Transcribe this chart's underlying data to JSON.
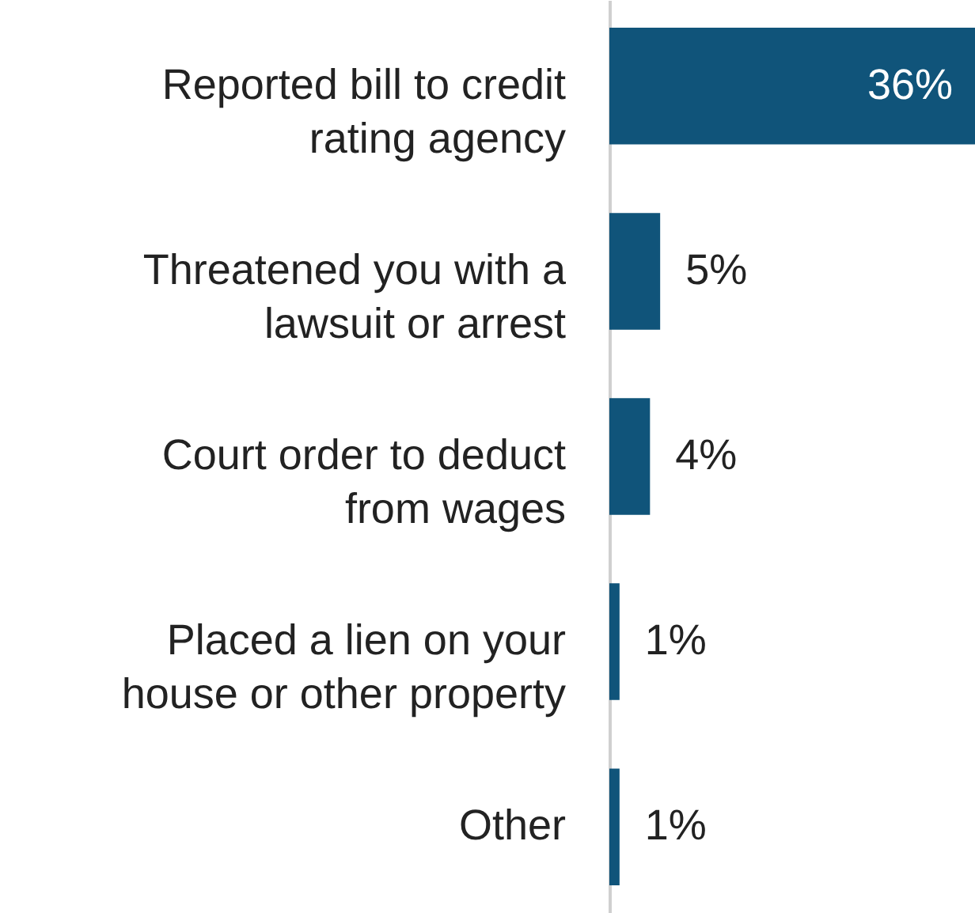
{
  "chart_data": {
    "type": "bar",
    "orientation": "horizontal",
    "categories": [
      "Reported bill to credit\nrating agency",
      "Threatened you with a\nlawsuit or arrest",
      "Court order to deduct\nfrom wages",
      "Placed a lien on your\nhouse or other property",
      "Other"
    ],
    "values": [
      36,
      5,
      4,
      1,
      1
    ],
    "value_labels": [
      "36%",
      "5%",
      "4%",
      "1%",
      "1%"
    ],
    "color": "#10547a",
    "grid": false,
    "tick_labels": "y"
  }
}
